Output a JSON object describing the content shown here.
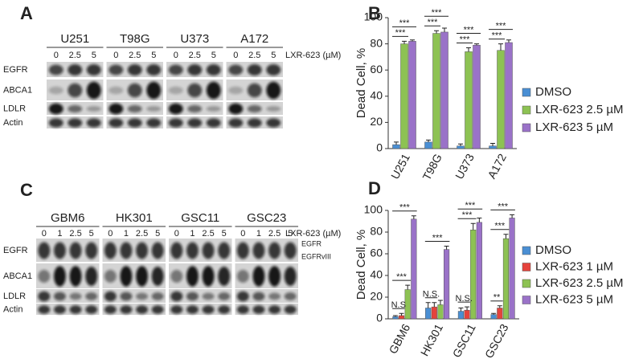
{
  "blots": [
    {
      "letter": "A",
      "groups": [
        "U251",
        "T98G",
        "U373",
        "A172"
      ],
      "doses": [
        "0",
        "2.5",
        "5"
      ],
      "dose_label": "LXR-623 (µM)",
      "rows": [
        "EGFR",
        "ABCA1",
        "LDLR",
        "Actin"
      ]
    },
    {
      "letter": "C",
      "groups": [
        "GBM6",
        "HK301",
        "GSC11",
        "GSC23"
      ],
      "doses": [
        "0",
        "1",
        "2.5",
        "5"
      ],
      "dose_label": "LXR-623 (µM)",
      "rows": [
        "EGFR",
        "ABCA1",
        "LDLR",
        "Actin"
      ],
      "side_labels": [
        "EGFR",
        "EGFRvIII"
      ]
    }
  ],
  "chart_data": [
    {
      "letter": "B",
      "type": "bar",
      "ylabel": "Dead Cell, %",
      "categories": [
        "U251",
        "T98G",
        "U373",
        "A172"
      ],
      "series": [
        {
          "name": "DMSO",
          "color": "#4a8fd4",
          "values": [
            3,
            5,
            2,
            2
          ],
          "errors": [
            2,
            1.5,
            1.5,
            2
          ]
        },
        {
          "name": "LXR-623 2.5 µM",
          "color": "#8dc253",
          "values": [
            80,
            88,
            74,
            75
          ],
          "errors": [
            2,
            2,
            3,
            5
          ]
        },
        {
          "name": "LXR-623 5 µM",
          "color": "#9a72c8",
          "values": [
            82,
            89,
            79,
            81
          ],
          "errors": [
            1,
            3,
            1,
            2
          ]
        }
      ],
      "annotations": [
        [
          "***",
          "***"
        ],
        [
          "***",
          "***"
        ],
        [
          "***",
          "***"
        ],
        [
          "***",
          "***"
        ]
      ],
      "ylim": [
        0,
        100
      ],
      "yticks": [
        0,
        20,
        40,
        60,
        80,
        100
      ]
    },
    {
      "letter": "D",
      "type": "bar",
      "ylabel": "Dead Cell, %",
      "categories": [
        "GBM6",
        "HK301",
        "GSC11",
        "GSC23"
      ],
      "series": [
        {
          "name": "DMSO",
          "color": "#4a8fd4",
          "values": [
            2,
            10,
            7,
            4
          ],
          "errors": [
            1,
            5,
            3,
            1
          ]
        },
        {
          "name": "LXR-623 1 µM",
          "color": "#e5433c",
          "values": [
            3,
            11,
            8,
            10
          ],
          "errors": [
            2,
            4,
            3,
            2
          ]
        },
        {
          "name": "LXR-623 2.5 µM",
          "color": "#8dc253",
          "values": [
            27,
            13,
            82,
            74
          ],
          "errors": [
            4,
            4,
            6,
            4
          ]
        },
        {
          "name": "LXR-623 5 µM",
          "color": "#9a72c8",
          "values": [
            92,
            64,
            89,
            93
          ],
          "errors": [
            3,
            3,
            4,
            3
          ]
        }
      ],
      "annotations": [
        [
          "N.S",
          "***",
          "***"
        ],
        [
          "N.S.",
          null,
          "***"
        ],
        [
          "N.S.",
          "***",
          "***"
        ],
        [
          "**",
          "***",
          "***"
        ]
      ],
      "ylim": [
        0,
        100
      ],
      "yticks": [
        0,
        20,
        40,
        60,
        80,
        100
      ]
    }
  ]
}
